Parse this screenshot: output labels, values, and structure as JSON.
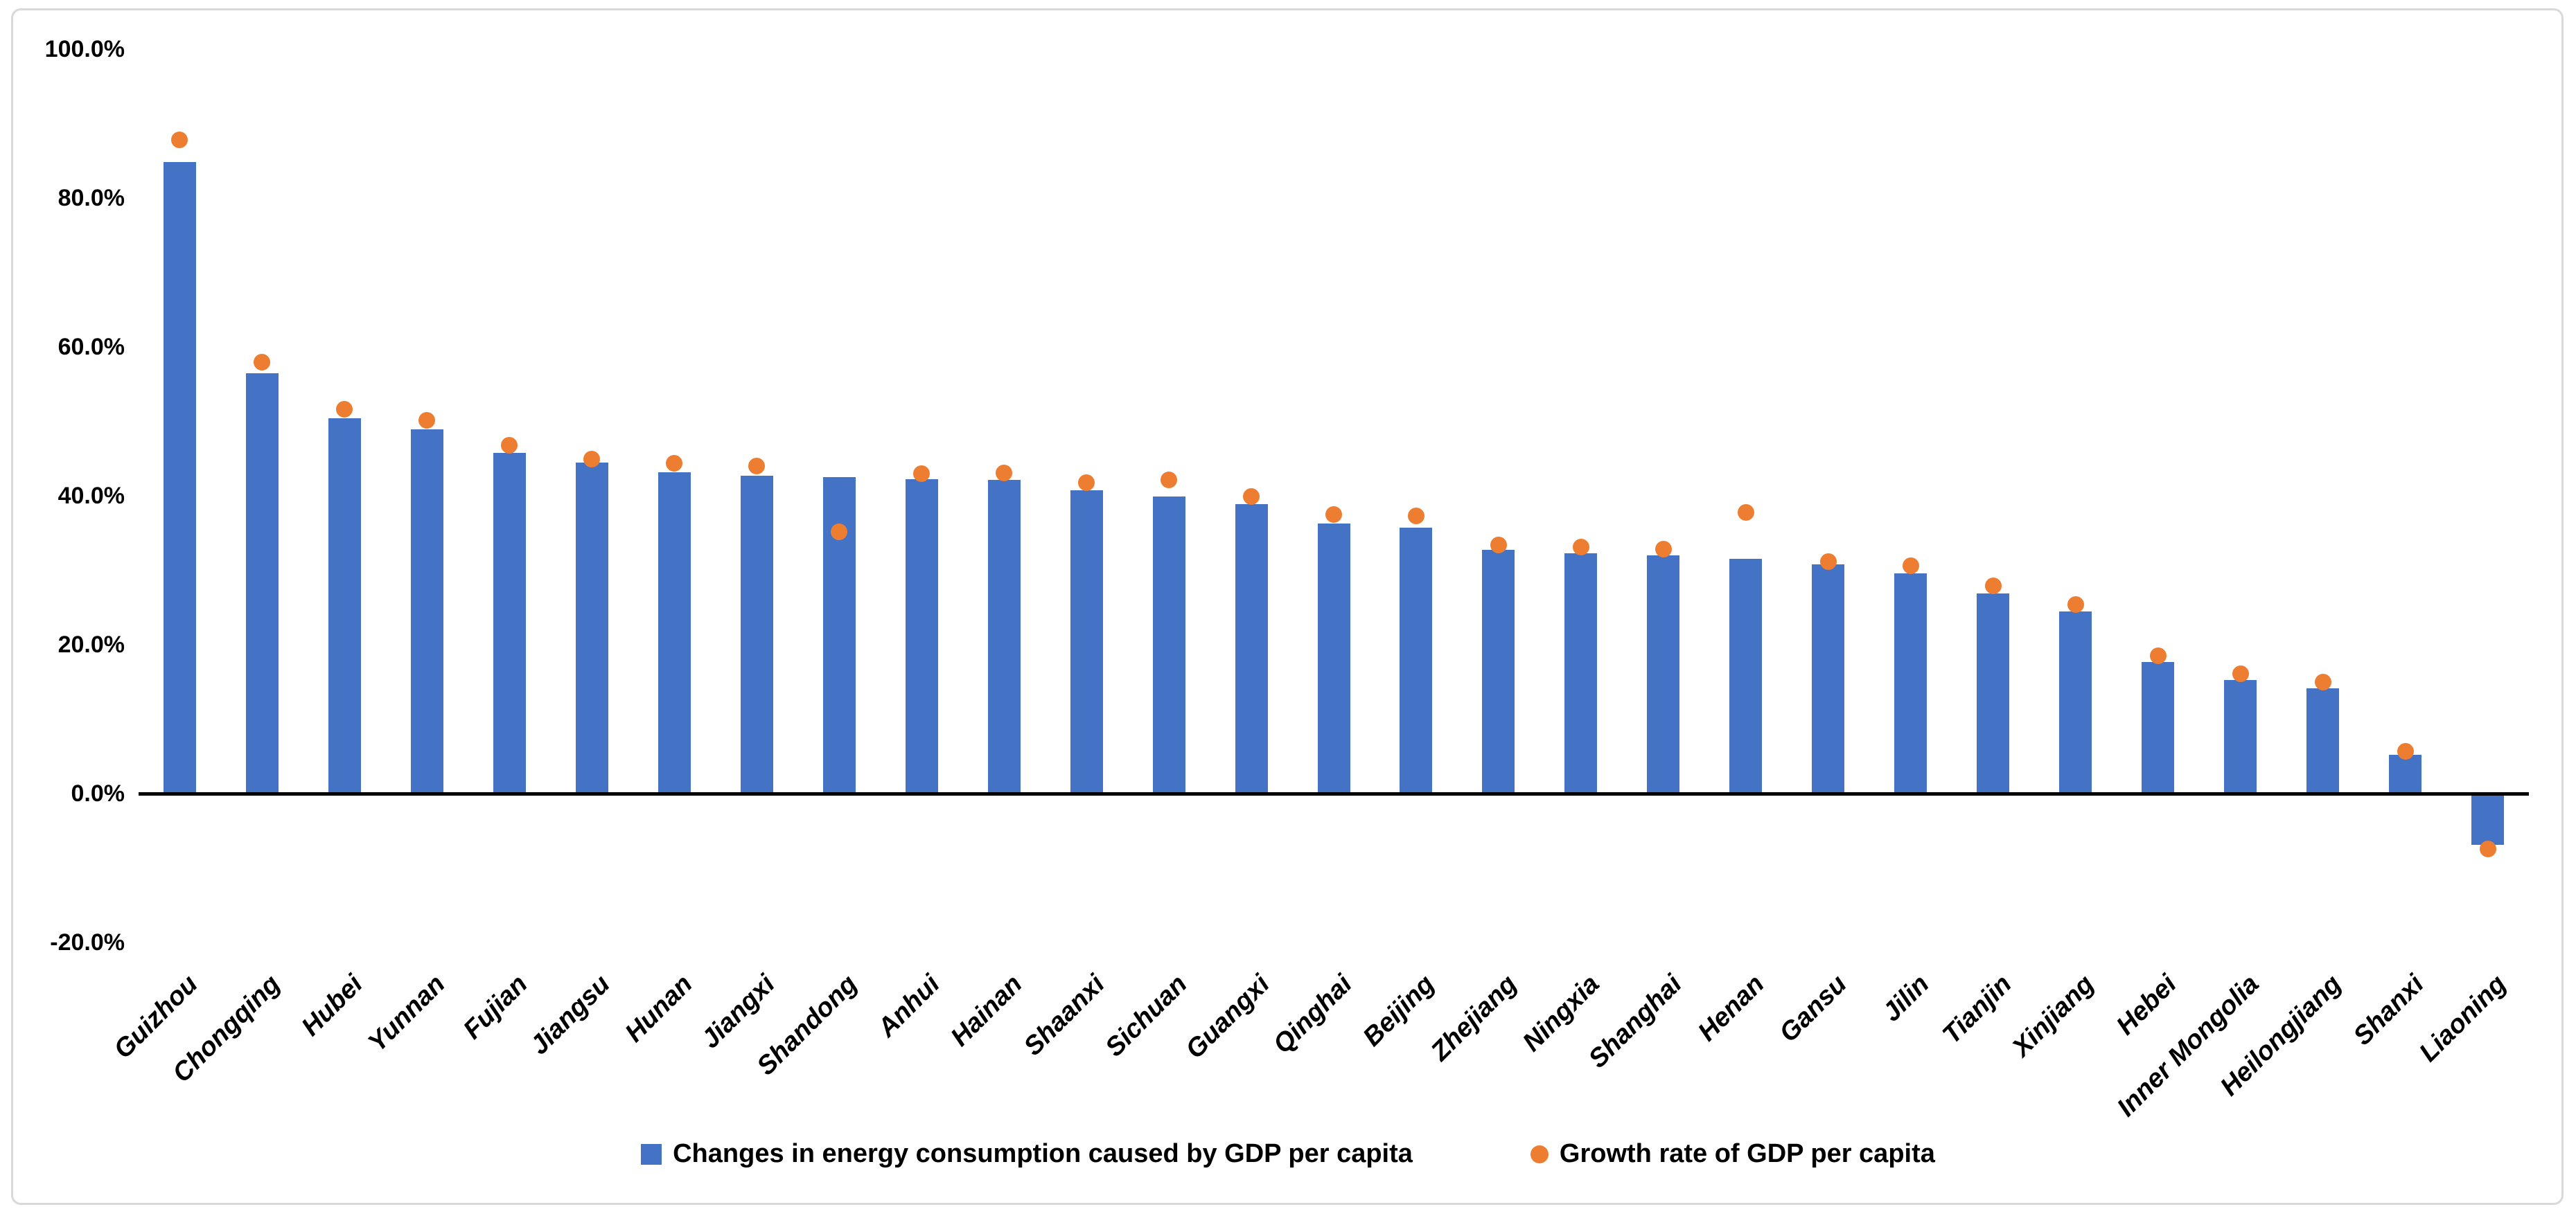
{
  "chart_data": {
    "type": "bar",
    "title": "",
    "xlabel": "",
    "ylabel": "",
    "categories": [
      "Guizhou",
      "Chongqing",
      "Hubei",
      "Yunnan",
      "Fujian",
      "Jiangsu",
      "Hunan",
      "Jiangxi",
      "Shandong",
      "Anhui",
      "Hainan",
      "Shaanxi",
      "Sichuan",
      "Guangxi",
      "Qinghai",
      "Beijing",
      "Zhejiang",
      "Ningxia",
      "Shanghai",
      "Henan",
      "Gansu",
      "Jilin",
      "Tianjin",
      "Xinjiang",
      "Hebei",
      "Inner Mongolia",
      "Heilongjiang",
      "Shanxi",
      "Liaoning"
    ],
    "series": [
      {
        "name": "Changes in energy consumption caused by GDP per capita",
        "type": "bar",
        "color": "#4472C4",
        "values": [
          84.8,
          56.5,
          50.4,
          48.9,
          45.8,
          44.5,
          43.2,
          42.7,
          42.5,
          42.2,
          42.1,
          40.7,
          39.9,
          38.9,
          36.3,
          35.7,
          32.7,
          32.3,
          32.0,
          31.5,
          30.8,
          29.6,
          26.9,
          24.5,
          17.7,
          15.3,
          14.1,
          5.2,
          -6.9
        ]
      },
      {
        "name": "Growth rate of GDP per capita",
        "type": "scatter",
        "color": "#ED7D31",
        "values": [
          87.8,
          58.0,
          51.6,
          50.1,
          46.8,
          44.9,
          44.4,
          44.0,
          35.2,
          43.0,
          43.1,
          41.8,
          42.1,
          39.9,
          37.5,
          37.3,
          33.4,
          33.1,
          32.8,
          37.8,
          31.2,
          30.6,
          27.9,
          25.4,
          18.5,
          16.1,
          15.0,
          5.7,
          -7.4
        ]
      }
    ],
    "y_ticks": [
      "100.0%",
      "80.0%",
      "60.0%",
      "40.0%",
      "20.0%",
      "0.0%",
      "-20.0%"
    ],
    "y_tick_values": [
      100,
      80,
      60,
      40,
      20,
      0,
      -20
    ],
    "ylim": [
      -20,
      100
    ],
    "grid": false,
    "legend_position": "bottom",
    "axis_color": "#000000",
    "text_color": "#000000",
    "frame_color": "#d9d9d9"
  }
}
